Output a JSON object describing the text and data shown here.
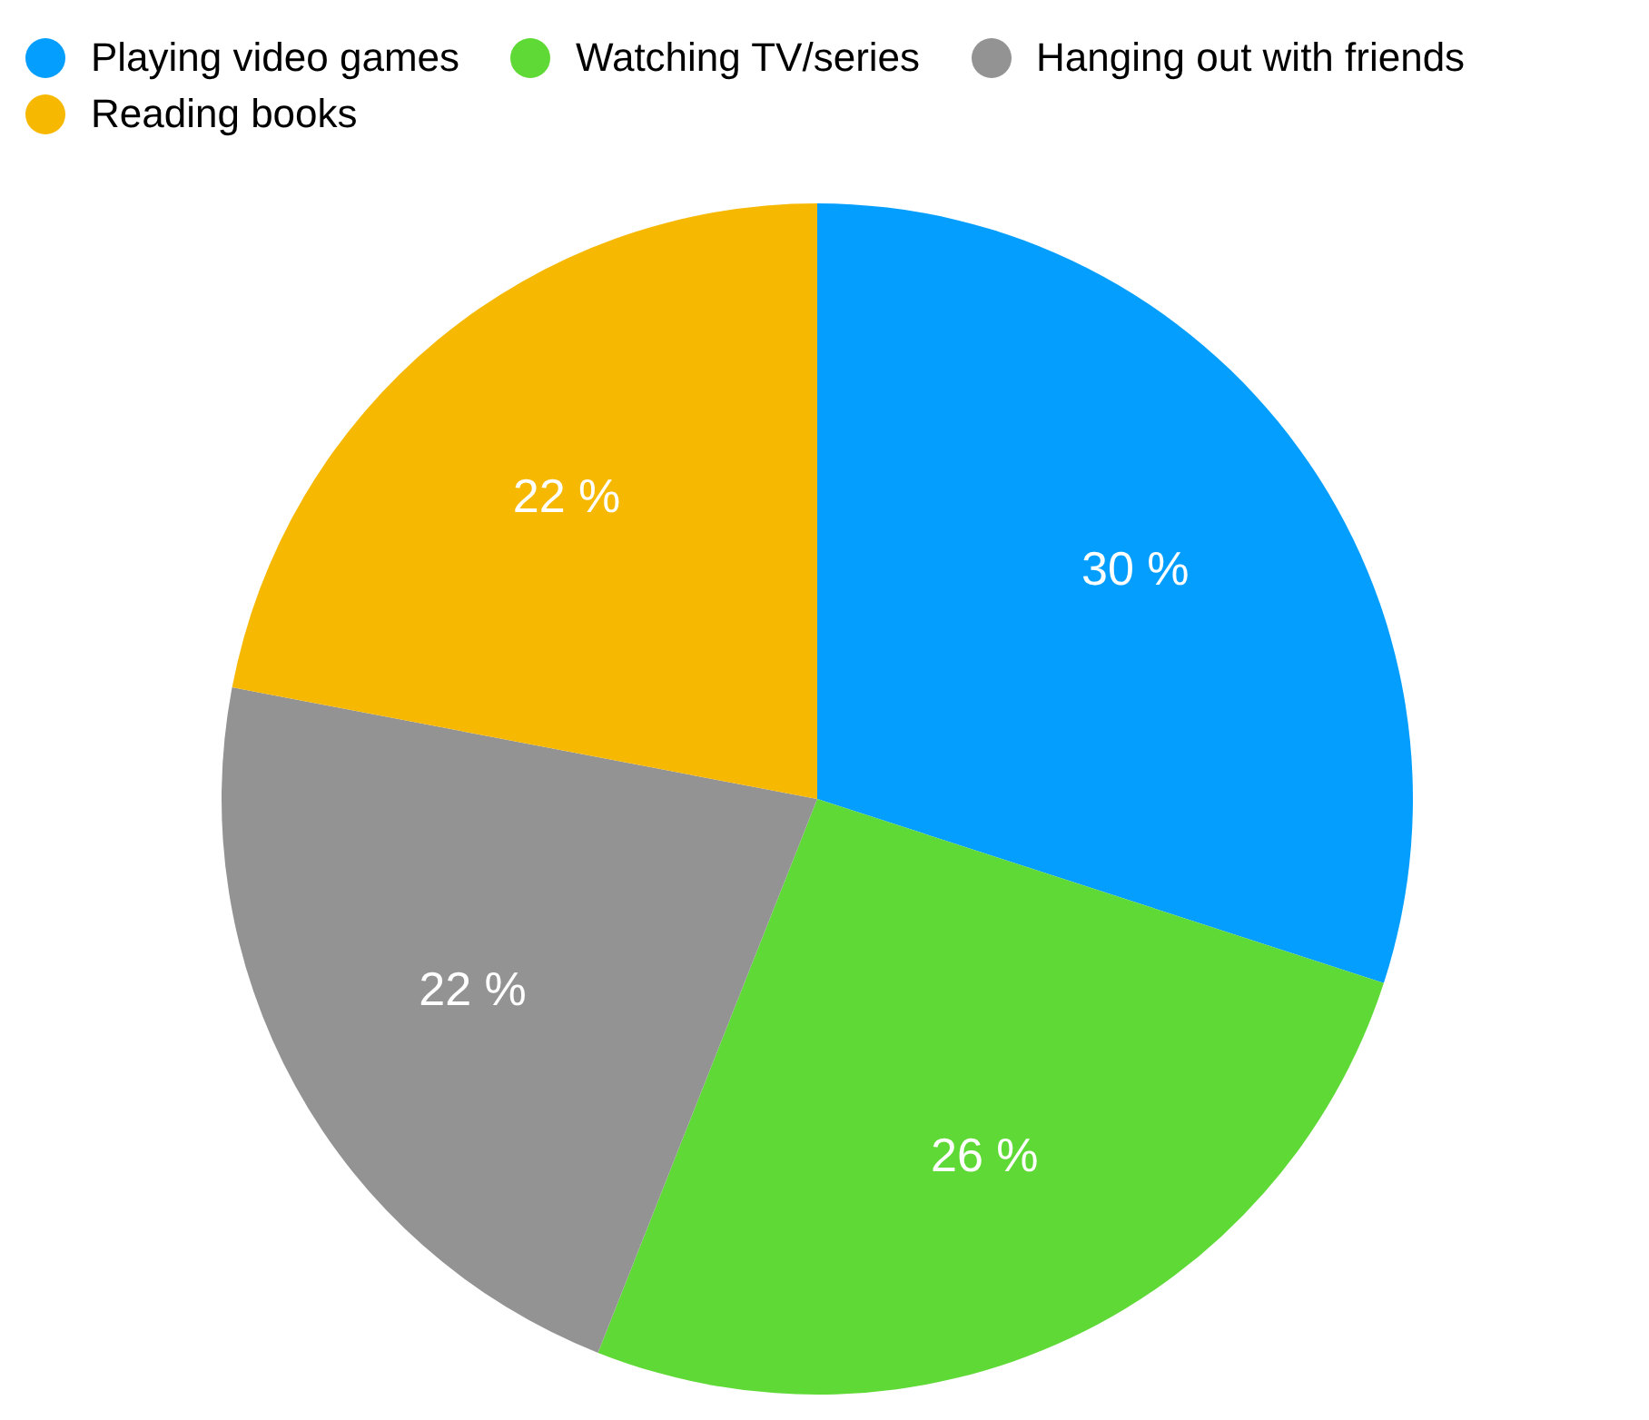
{
  "chart_data": {
    "type": "pie",
    "categories": [
      "Playing video games",
      "Watching TV/series",
      "Hanging out with friends",
      "Reading books"
    ],
    "values": [
      30,
      26,
      22,
      22
    ],
    "colors": [
      "#049ffe",
      "#5fd936",
      "#939393",
      "#f6b800"
    ],
    "value_labels": [
      "30 %",
      "26 %",
      "22 %",
      "22 %"
    ],
    "legend": "top left"
  }
}
